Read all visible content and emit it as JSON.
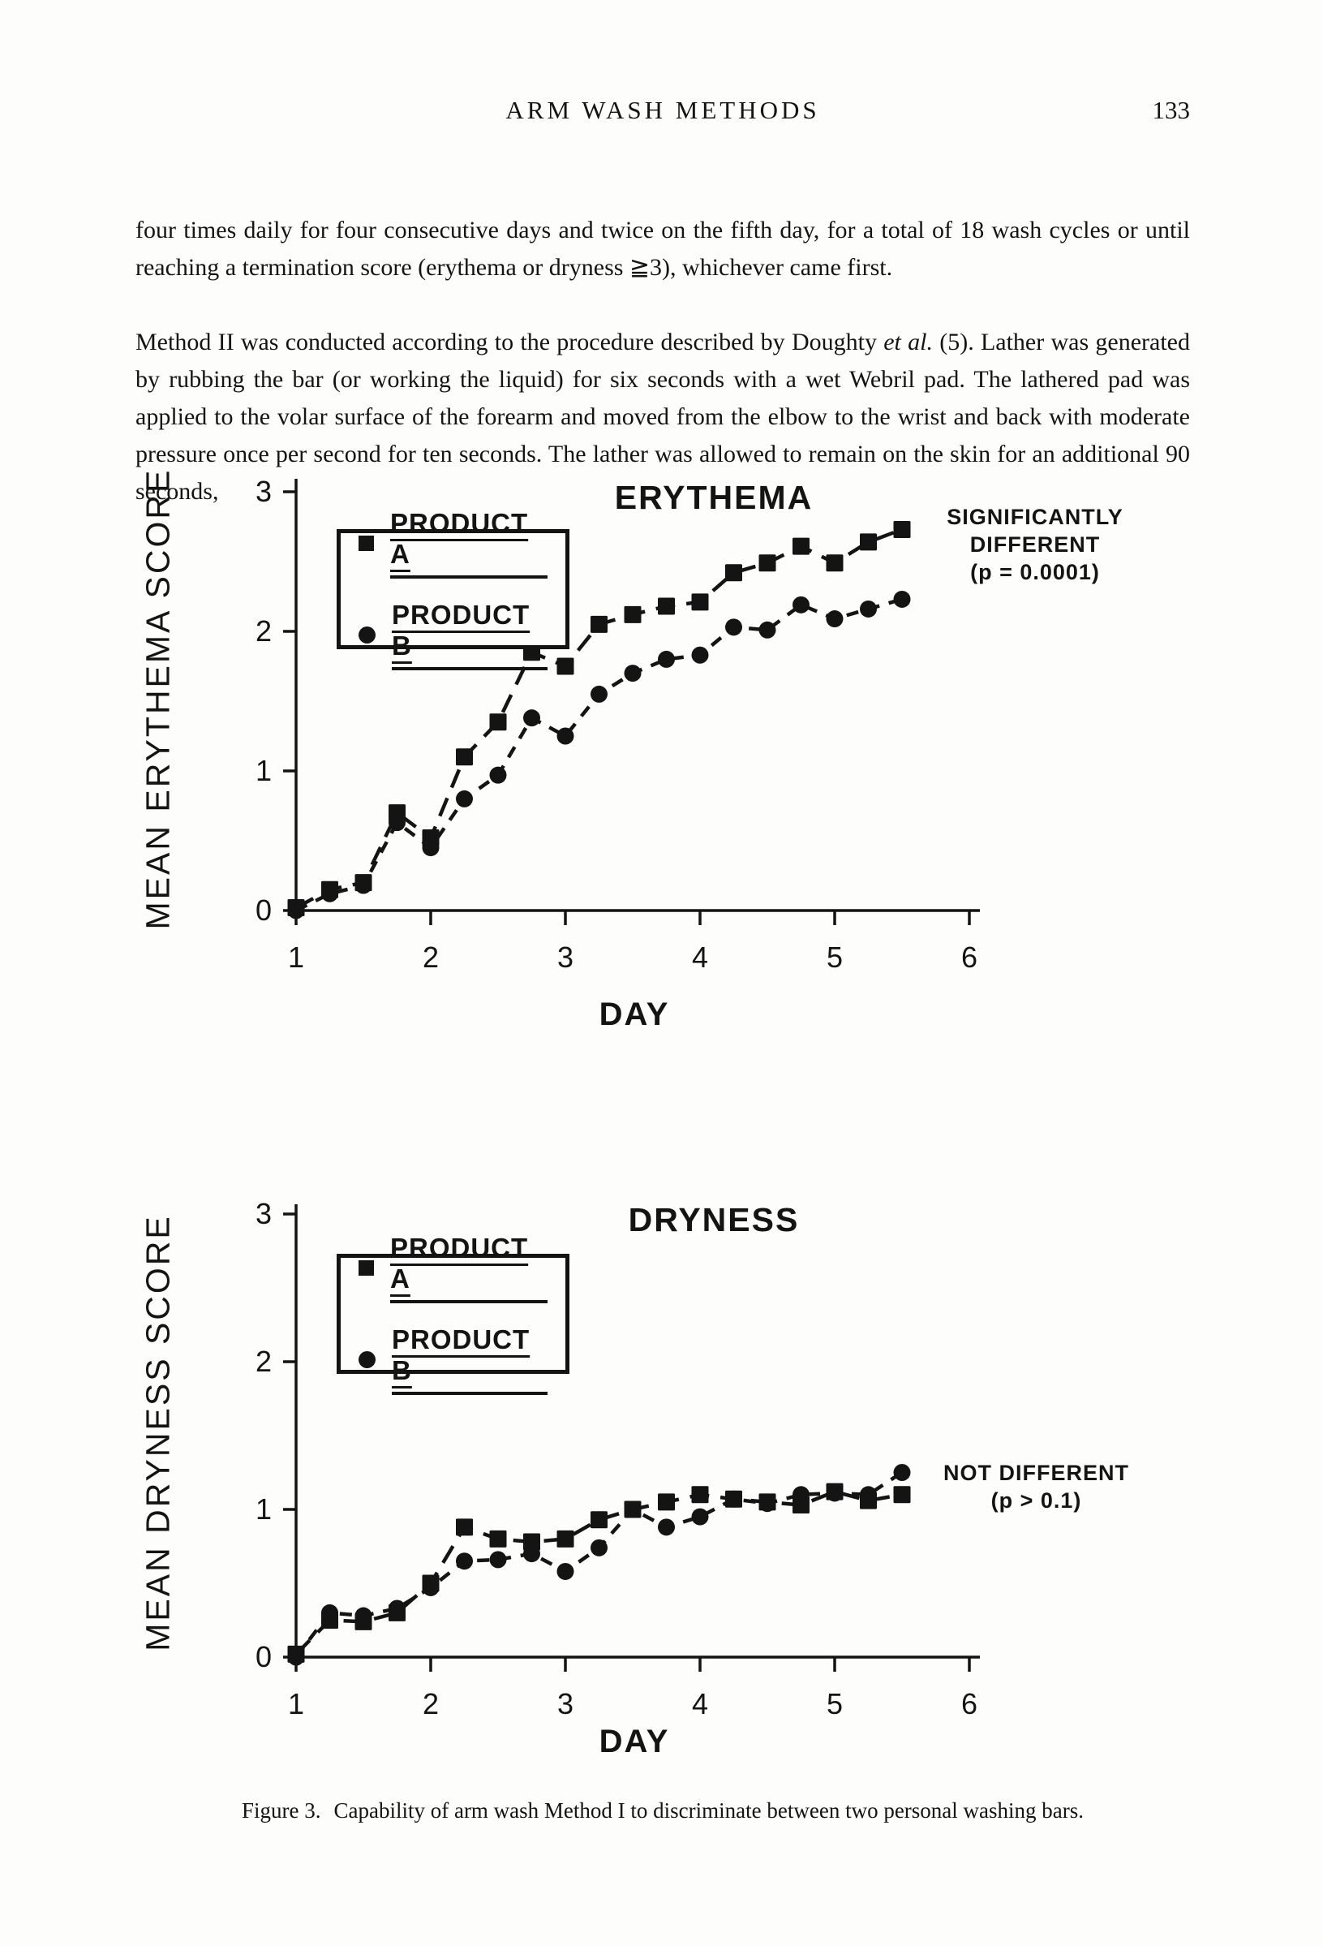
{
  "ink_color": "#141414",
  "page": {
    "running_head": "ARM WASH METHODS",
    "page_number": "133",
    "paragraph1": "four times daily for four consecutive days and twice on the fifth day, for a total of 18 wash cycles or until reaching a termination score (erythema or dryness ≧3), whichever came first.",
    "paragraph2_pre": "Method II was conducted according to the procedure described by Doughty ",
    "paragraph2_italic": "et al.",
    "paragraph2_post": " (5). Lather was generated by rubbing the bar (or working the liquid) for six seconds with a wet Webril pad. The lathered pad was applied to the volar surface of the forearm and moved from the elbow to the wrist and back with moderate pressure once per second for ten seconds. The lather was allowed to remain on the skin for an additional 90 seconds,",
    "caption_label": "Figure 3.",
    "caption_text": "Capability of arm wash Method I to discriminate between two personal washing bars."
  },
  "chart_data": [
    {
      "type": "line",
      "title": "ERYTHEMA",
      "xlabel": "DAY",
      "ylabel": "MEAN ERYTHEMA SCORE",
      "xlim": [
        1,
        6
      ],
      "ylim": [
        0,
        3
      ],
      "x_ticks": [
        1,
        2,
        3,
        4,
        5,
        6
      ],
      "y_ticks": [
        0,
        1,
        2,
        3
      ],
      "grid": false,
      "legend_position": "upper left",
      "legend": [
        "PRODUCT A",
        "PRODUCT B"
      ],
      "annotation": [
        "SIGNIFICANTLY",
        "DIFFERENT",
        "(p = 0.0001)"
      ],
      "x": [
        1,
        1.25,
        1.5,
        1.75,
        2,
        2.25,
        2.5,
        2.75,
        3,
        3.25,
        3.5,
        3.75,
        4,
        4.25,
        4.5,
        4.75,
        5,
        5.25,
        5.5
      ],
      "series": [
        {
          "name": "PRODUCT A",
          "marker": "square",
          "linestyle": "dashed",
          "values": [
            0.02,
            0.15,
            0.2,
            0.7,
            0.52,
            1.1,
            1.35,
            1.85,
            1.75,
            2.05,
            2.12,
            2.18,
            2.21,
            2.42,
            2.49,
            2.61,
            2.49,
            2.64,
            2.73
          ]
        },
        {
          "name": "PRODUCT B",
          "marker": "circle",
          "linestyle": "dashed",
          "values": [
            0.0,
            0.12,
            0.18,
            0.63,
            0.45,
            0.8,
            0.97,
            1.38,
            1.25,
            1.55,
            1.7,
            1.8,
            1.83,
            2.03,
            2.01,
            2.19,
            2.09,
            2.16,
            2.23
          ]
        }
      ]
    },
    {
      "type": "line",
      "title": "DRYNESS",
      "xlabel": "DAY",
      "ylabel": "MEAN DRYNESS SCORE",
      "xlim": [
        1,
        6
      ],
      "ylim": [
        0,
        3
      ],
      "x_ticks": [
        1,
        2,
        3,
        4,
        5,
        6
      ],
      "y_ticks": [
        0,
        1,
        2,
        3
      ],
      "grid": false,
      "legend_position": "upper left",
      "legend": [
        "PRODUCT A",
        "PRODUCT B"
      ],
      "annotation": [
        "NOT DIFFERENT",
        "(p > 0.1)"
      ],
      "x": [
        1,
        1.25,
        1.5,
        1.75,
        2,
        2.25,
        2.5,
        2.75,
        3,
        3.25,
        3.5,
        3.75,
        4,
        4.25,
        4.5,
        4.75,
        5,
        5.25,
        5.5
      ],
      "series": [
        {
          "name": "PRODUCT A",
          "marker": "square",
          "linestyle": "dashed",
          "values": [
            0.02,
            0.25,
            0.24,
            0.3,
            0.5,
            0.88,
            0.8,
            0.78,
            0.8,
            0.93,
            1.0,
            1.05,
            1.1,
            1.07,
            1.05,
            1.03,
            1.12,
            1.06,
            1.1
          ]
        },
        {
          "name": "PRODUCT B",
          "marker": "circle",
          "linestyle": "dashed",
          "values": [
            0.0,
            0.3,
            0.28,
            0.33,
            0.47,
            0.65,
            0.66,
            0.7,
            0.58,
            0.74,
            1.0,
            0.88,
            0.95,
            1.07,
            1.04,
            1.1,
            1.11,
            1.1,
            1.25
          ]
        }
      ]
    }
  ]
}
